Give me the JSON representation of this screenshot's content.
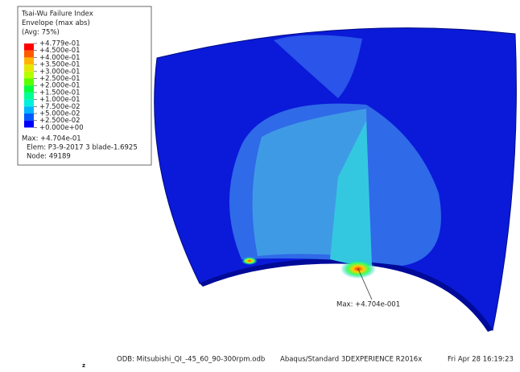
{
  "legend": {
    "title": [
      "Tsai-Wu Failure Index",
      "Envelope (max abs)",
      "(Avg: 75%)"
    ],
    "labels": [
      "+4.779e-01",
      "+4.500e-01",
      "+4.000e-01",
      "+3.500e-01",
      "+3.000e-01",
      "+2.500e-01",
      "+2.000e-01",
      "+1.500e-01",
      "+1.000e-01",
      "+7.500e-02",
      "+5.000e-02",
      "+2.500e-02",
      "+0.000e+00"
    ],
    "colors": [
      "#ff0000",
      "#ff5a00",
      "#ffb400",
      "#e6e600",
      "#b4ff00",
      "#5aff00",
      "#00ff3c",
      "#00ff96",
      "#00f0dc",
      "#00b4ff",
      "#005aff",
      "#0000ff"
    ],
    "info": [
      "Max: +4.704e-01",
      "Elem: P3-9-2017 3 blade-1.6925",
      "Node: 49189"
    ]
  },
  "annotation": "Max: +4.704e-001",
  "footer": [
    "ODB: Mitsubishi_QI_-45_60_90-300rpm.odb",
    "Abaqus/Standard 3DEXPERIENCE R2016x",
    "Fri Apr 28 16:19:23"
  ],
  "axis_label": "z"
}
